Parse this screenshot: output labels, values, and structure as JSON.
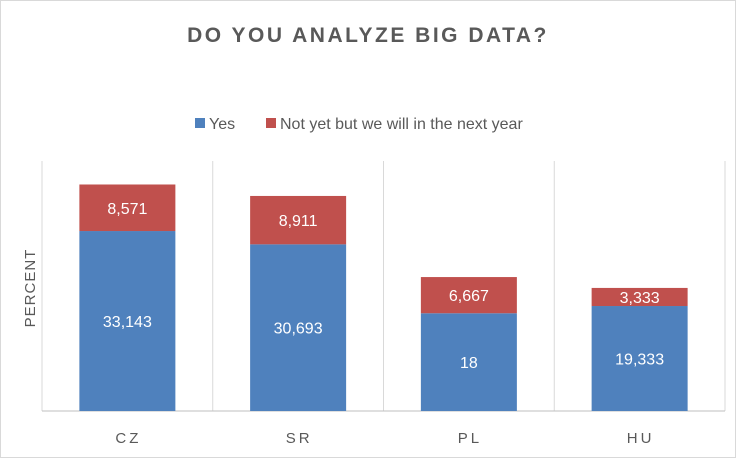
{
  "chart_data": {
    "type": "bar",
    "stacked": true,
    "title": "DO YOU ANALYZE BIG DATA?",
    "ylabel": "PERCENT",
    "xlabel": "",
    "categories": [
      "CZ",
      "SR",
      "PL",
      "HU"
    ],
    "series": [
      {
        "name": "Yes",
        "color": "#4f81bd",
        "values": [
          33.143,
          30.693,
          18,
          19.333
        ],
        "labels": [
          "33,143",
          "30,693",
          "18",
          "19,333"
        ]
      },
      {
        "name": "Not yet but we will in the next year",
        "color": "#c0504d",
        "values": [
          8.571,
          8.911,
          6.667,
          3.333
        ],
        "labels": [
          "8,571",
          "8,911",
          "6,667",
          "3,333"
        ]
      }
    ],
    "ylim": [
      0,
      45
    ],
    "legend_position": "top",
    "grid": "vertical category separators"
  }
}
